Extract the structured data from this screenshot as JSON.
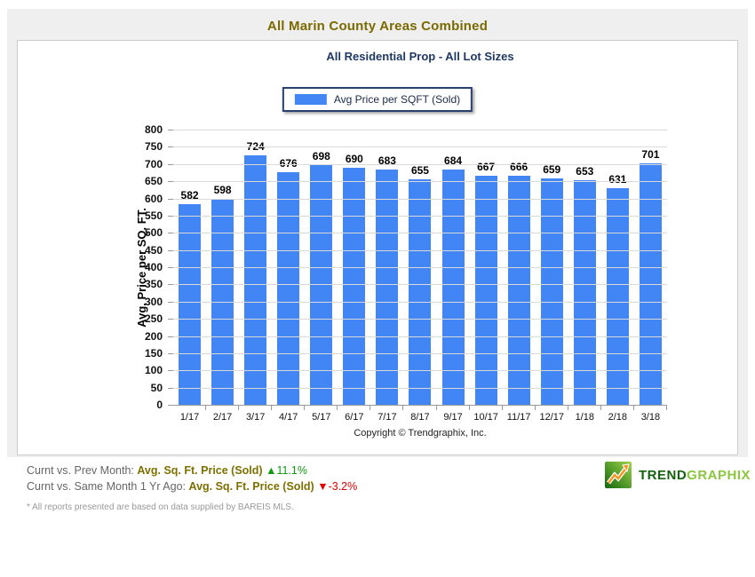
{
  "header": {
    "title": "All Marin County Areas Combined"
  },
  "chart": {
    "subtitle": "All Residential Prop - All Lot Sizes",
    "legend_label": "Avg Price per SQFT (Sold)",
    "ylabel": "Avg. Price per SQ. FT.",
    "copyright": "Copyright © Trendgraphix, Inc."
  },
  "chart_data": {
    "type": "bar",
    "title": "All Marin County Areas Combined",
    "subtitle": "All Residential Prop - All Lot Sizes",
    "series_name": "Avg Price per SQFT (Sold)",
    "categories": [
      "1/17",
      "2/17",
      "3/17",
      "4/17",
      "5/17",
      "6/17",
      "7/17",
      "8/17",
      "9/17",
      "10/17",
      "11/17",
      "12/17",
      "1/18",
      "2/18",
      "3/18"
    ],
    "values": [
      582,
      598,
      724,
      676,
      698,
      690,
      683,
      655,
      684,
      667,
      666,
      659,
      653,
      631,
      701
    ],
    "xlabel": "",
    "ylabel": "Avg. Price per SQ. FT.",
    "ylim": [
      0,
      800
    ],
    "ytick_step": 50,
    "grid": true,
    "bar_color": "#4285f4",
    "legend_position": "top-center"
  },
  "stats": {
    "line1": {
      "label": "Curnt vs. Prev Month: ",
      "metric": "Avg. Sq. Ft. Price (Sold) ",
      "arrow": "▲",
      "value": "11.1%"
    },
    "line2": {
      "label": "Curnt vs. Same Month 1 Yr Ago: ",
      "metric": "Avg. Sq. Ft. Price (Sold) ",
      "arrow": "▼",
      "value": "-3.2%"
    }
  },
  "logo": {
    "trend": "TREND",
    "graphix": "GRAPHIX"
  },
  "footnote": "* All reports presented are based on data supplied by BAREIS MLS.",
  "colors": {
    "bar": "#4285f4",
    "title": "#7a6a00",
    "subtitle": "#1f3864",
    "up": "#0f9b0f",
    "down": "#e10000"
  }
}
